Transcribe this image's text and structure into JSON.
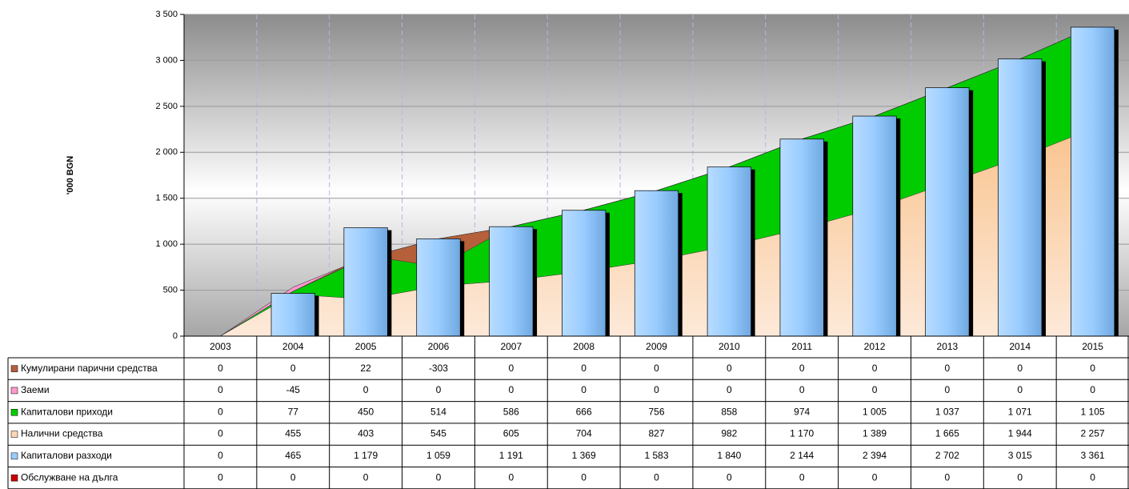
{
  "chart_data": {
    "type": "combo",
    "y_axis_label": "'000 BGN",
    "categories": [
      "2003",
      "2004",
      "2005",
      "2006",
      "2007",
      "2008",
      "2009",
      "2010",
      "2011",
      "2012",
      "2013",
      "2014",
      "2015"
    ],
    "ylim": [
      0,
      3500
    ],
    "yticks": [
      0,
      500,
      {
        "value": 1000,
        "label": "1 000"
      },
      {
        "value": 1500,
        "label": "1 500"
      },
      {
        "value": 2000,
        "label": "2 000"
      },
      {
        "value": 2500,
        "label": "2 500"
      },
      {
        "value": 3000,
        "label": "3 000"
      },
      {
        "value": 3500,
        "label": "3 500"
      }
    ],
    "grid": true,
    "series": [
      {
        "name": "Кумулирани парични средства",
        "type": "area",
        "color": "#b5603a",
        "values": [
          0,
          0,
          22,
          -303,
          0,
          0,
          0,
          0,
          0,
          0,
          0,
          0,
          0
        ]
      },
      {
        "name": "Заеми",
        "type": "area",
        "color": "#ff99cc",
        "values": [
          0,
          -45,
          0,
          0,
          0,
          0,
          0,
          0,
          0,
          0,
          0,
          0,
          0
        ]
      },
      {
        "name": "Капиталови приходи",
        "type": "area",
        "color": "#00cc00",
        "values": [
          0,
          77,
          450,
          514,
          586,
          666,
          756,
          858,
          974,
          1005,
          1037,
          1071,
          1105
        ],
        "value_labels": [
          "0",
          "77",
          "450",
          "514",
          "586",
          "666",
          "756",
          "858",
          "974",
          "1 005",
          "1 037",
          "1 071",
          "1 105"
        ]
      },
      {
        "name": "Налични средства",
        "type": "area",
        "color": "#fcd5b4",
        "values": [
          0,
          455,
          403,
          545,
          605,
          704,
          827,
          982,
          1170,
          1389,
          1665,
          1944,
          2257
        ],
        "value_labels": [
          "0",
          "455",
          "403",
          "545",
          "605",
          "704",
          "827",
          "982",
          "1 170",
          "1 389",
          "1 665",
          "1 944",
          "2 257"
        ]
      },
      {
        "name": "Капиталови разходи",
        "type": "bar",
        "color": "#99ccff",
        "values": [
          0,
          465,
          1179,
          1059,
          1191,
          1369,
          1583,
          1840,
          2144,
          2394,
          2702,
          3015,
          3361
        ],
        "value_labels": [
          "0",
          "465",
          "1 179",
          "1 059",
          "1 191",
          "1 369",
          "1 583",
          "1 840",
          "2 144",
          "2 394",
          "2 702",
          "3 015",
          "3 361"
        ]
      },
      {
        "name": "Обслужване на дълга",
        "type": "area",
        "color": "#cc0000",
        "values": [
          0,
          0,
          0,
          0,
          0,
          0,
          0,
          0,
          0,
          0,
          0,
          0,
          0
        ]
      }
    ]
  }
}
